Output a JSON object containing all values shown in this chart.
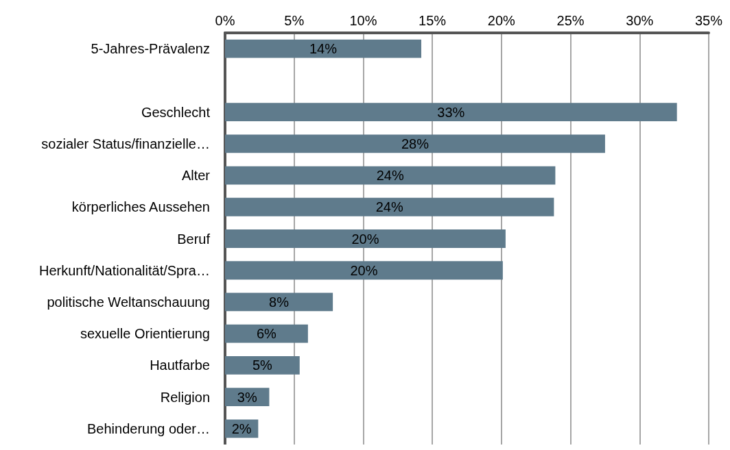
{
  "chart_data": {
    "type": "bar",
    "orientation": "horizontal",
    "categories": [
      "5-Jahres-Prävalenz",
      null,
      "Geschlecht",
      "sozialer Status/finanzielle…",
      "Alter",
      "körperliches Aussehen",
      "Beruf",
      "Herkunft/Nationalität/Spra…",
      "politische Weltanschauung",
      "sexuelle Orientierung",
      "Hautfarbe",
      "Religion",
      "Behinderung oder…"
    ],
    "values": [
      14.2,
      null,
      32.7,
      27.5,
      23.9,
      23.8,
      20.3,
      20.1,
      7.8,
      6.0,
      5.4,
      3.2,
      2.4
    ],
    "value_labels": [
      "14%",
      null,
      "33%",
      "28%",
      "24%",
      "24%",
      "20%",
      "20%",
      "8%",
      "6%",
      "5%",
      "3%",
      "2%"
    ],
    "color": "#5f7b8c",
    "xlim": [
      0,
      35
    ],
    "xticks": [
      {
        "value": 0,
        "label": "0%"
      },
      {
        "value": 5,
        "label": "5%"
      },
      {
        "value": 10,
        "label": "10%"
      },
      {
        "value": 15,
        "label": "15%"
      },
      {
        "value": 20,
        "label": "20%"
      },
      {
        "value": 25,
        "label": "25%"
      },
      {
        "value": 30,
        "label": "30%"
      },
      {
        "value": 35,
        "label": "35%"
      }
    ],
    "grid": "x"
  }
}
